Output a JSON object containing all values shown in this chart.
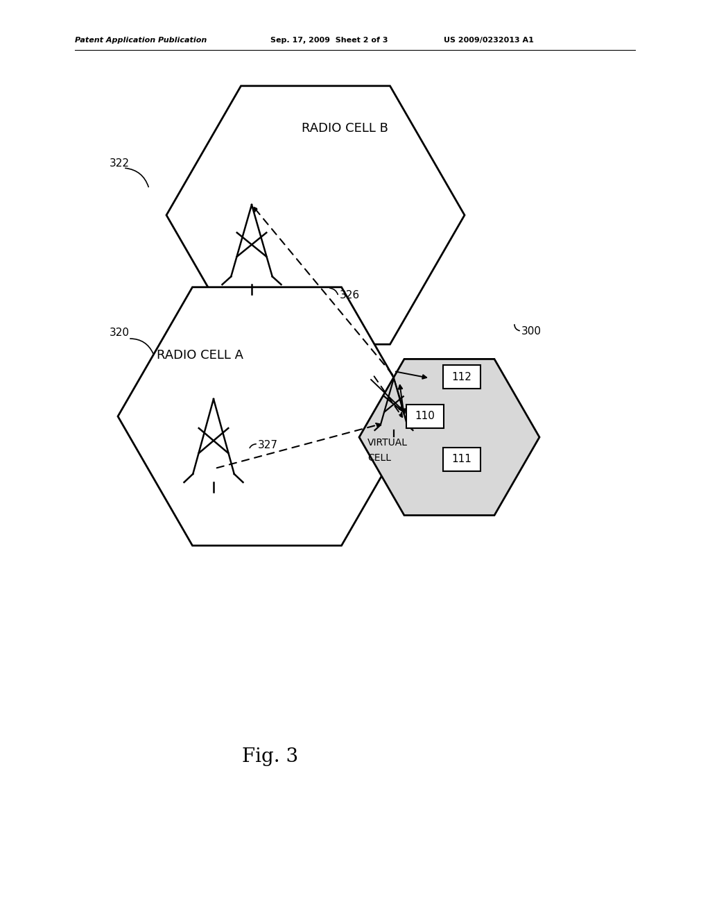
{
  "bg_color": "#ffffff",
  "line_color": "#000000",
  "header_left": "Patent Application Publication",
  "header_mid": "Sep. 17, 2009  Sheet 2 of 3",
  "header_right": "US 2009/0232013 A1",
  "fig_label": "Fig. 3",
  "label_322": "322",
  "label_320": "320",
  "label_326": "326",
  "label_327": "327",
  "label_300": "300",
  "label_110": "110",
  "label_111": "111",
  "label_112": "112",
  "label_radio_b": "RADIO CELL B",
  "label_radio_a": "RADIO CELL A",
  "label_virtual1": "VIRTUAL",
  "label_virtual2": "CELL",
  "small_hex_fill": "#d8d8d8"
}
